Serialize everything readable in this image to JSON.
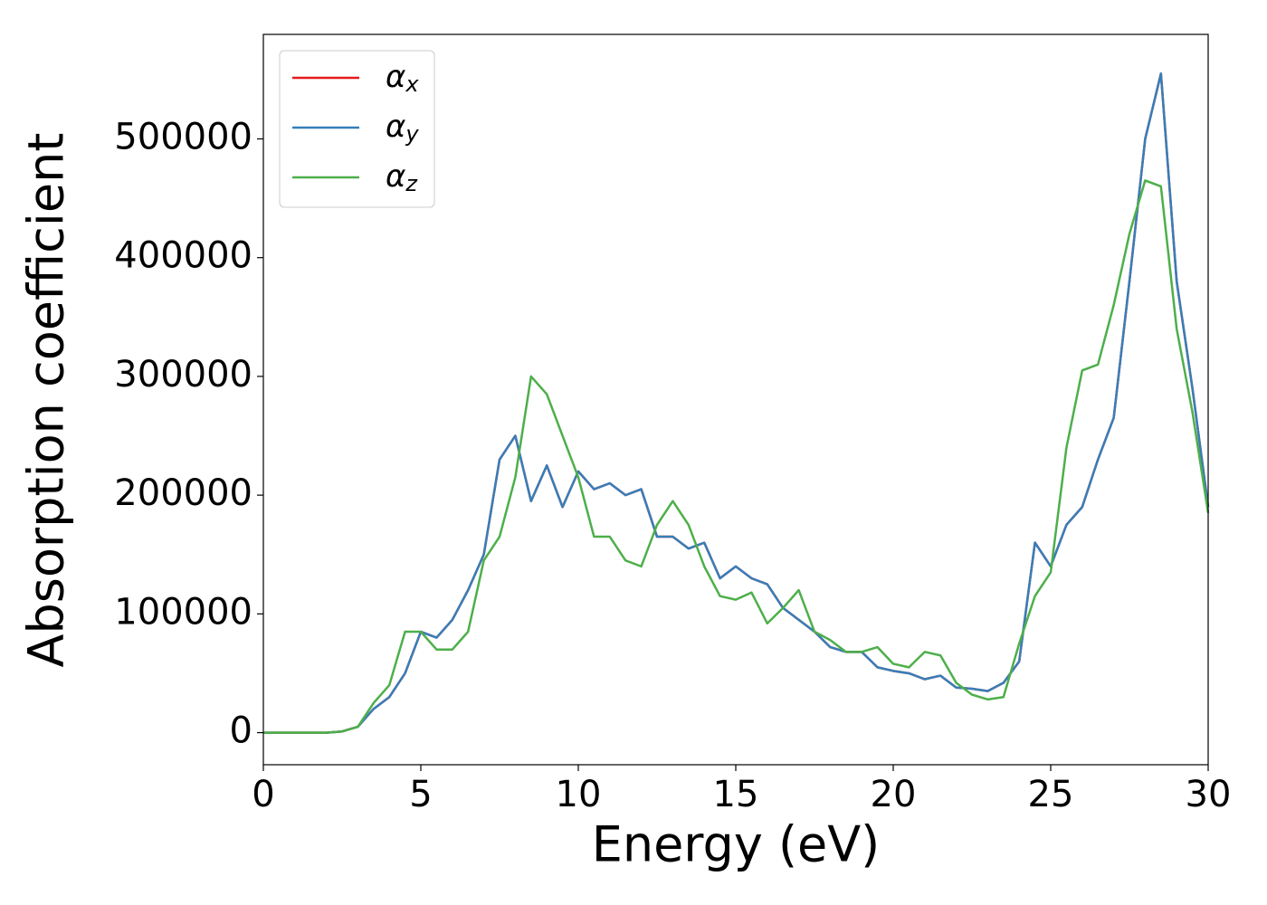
{
  "chart_data": {
    "type": "line",
    "xlabel": "Energy (eV)",
    "ylabel": "Absorption coefficient",
    "x": [
      0,
      0.5,
      1,
      1.5,
      2,
      2.5,
      3,
      3.5,
      4,
      4.5,
      5,
      5.5,
      6,
      6.5,
      7,
      7.5,
      8,
      8.5,
      9,
      9.5,
      10,
      10.5,
      11,
      11.5,
      12,
      12.5,
      13,
      13.5,
      14,
      14.5,
      15,
      15.5,
      16,
      16.5,
      17,
      17.5,
      18,
      18.5,
      19,
      19.5,
      20,
      20.5,
      21,
      21.5,
      22,
      22.5,
      23,
      23.5,
      24,
      24.5,
      25,
      25.5,
      26,
      26.5,
      27,
      27.5,
      28,
      28.5,
      29,
      29.5,
      30
    ],
    "series": [
      {
        "name": "αx",
        "color": "#e41a1c",
        "values": [
          0,
          0,
          0,
          0,
          0,
          1000,
          5000,
          20000,
          30000,
          50000,
          85000,
          80000,
          95000,
          120000,
          150000,
          230000,
          250000,
          195000,
          225000,
          190000,
          220000,
          205000,
          210000,
          200000,
          205000,
          165000,
          165000,
          155000,
          160000,
          130000,
          140000,
          130000,
          125000,
          105000,
          95000,
          85000,
          72000,
          68000,
          68000,
          55000,
          52000,
          50000,
          45000,
          48000,
          38000,
          37000,
          35000,
          42000,
          60000,
          160000,
          140000,
          175000,
          190000,
          230000,
          265000,
          380000,
          500000,
          555000,
          380000,
          290000,
          190000
        ]
      },
      {
        "name": "αy",
        "color": "#377eb8",
        "values": [
          0,
          0,
          0,
          0,
          0,
          1000,
          5000,
          20000,
          30000,
          50000,
          85000,
          80000,
          95000,
          120000,
          150000,
          230000,
          250000,
          195000,
          225000,
          190000,
          220000,
          205000,
          210000,
          200000,
          205000,
          165000,
          165000,
          155000,
          160000,
          130000,
          140000,
          130000,
          125000,
          105000,
          95000,
          85000,
          72000,
          68000,
          68000,
          55000,
          52000,
          50000,
          45000,
          48000,
          38000,
          37000,
          35000,
          42000,
          60000,
          160000,
          140000,
          175000,
          190000,
          230000,
          265000,
          380000,
          500000,
          555000,
          380000,
          290000,
          190000
        ]
      },
      {
        "name": "αz",
        "color": "#4daf4a",
        "values": [
          0,
          0,
          0,
          0,
          0,
          1000,
          5000,
          25000,
          40000,
          85000,
          85000,
          70000,
          70000,
          85000,
          145000,
          165000,
          215000,
          300000,
          285000,
          250000,
          215000,
          165000,
          165000,
          145000,
          140000,
          175000,
          195000,
          175000,
          140000,
          115000,
          112000,
          118000,
          92000,
          105000,
          120000,
          85000,
          78000,
          68000,
          68000,
          72000,
          58000,
          55000,
          68000,
          65000,
          42000,
          32000,
          28000,
          30000,
          75000,
          115000,
          135000,
          240000,
          305000,
          310000,
          360000,
          420000,
          465000,
          460000,
          340000,
          270000,
          185000
        ]
      }
    ],
    "xlim": [
      0,
      30
    ],
    "xticks": [
      0,
      5,
      10,
      15,
      20,
      25,
      30
    ],
    "ylim": [
      -27000,
      588000
    ],
    "yticks": [
      0,
      100000,
      200000,
      300000,
      400000,
      500000
    ],
    "grid": false,
    "legend": "upper left"
  }
}
